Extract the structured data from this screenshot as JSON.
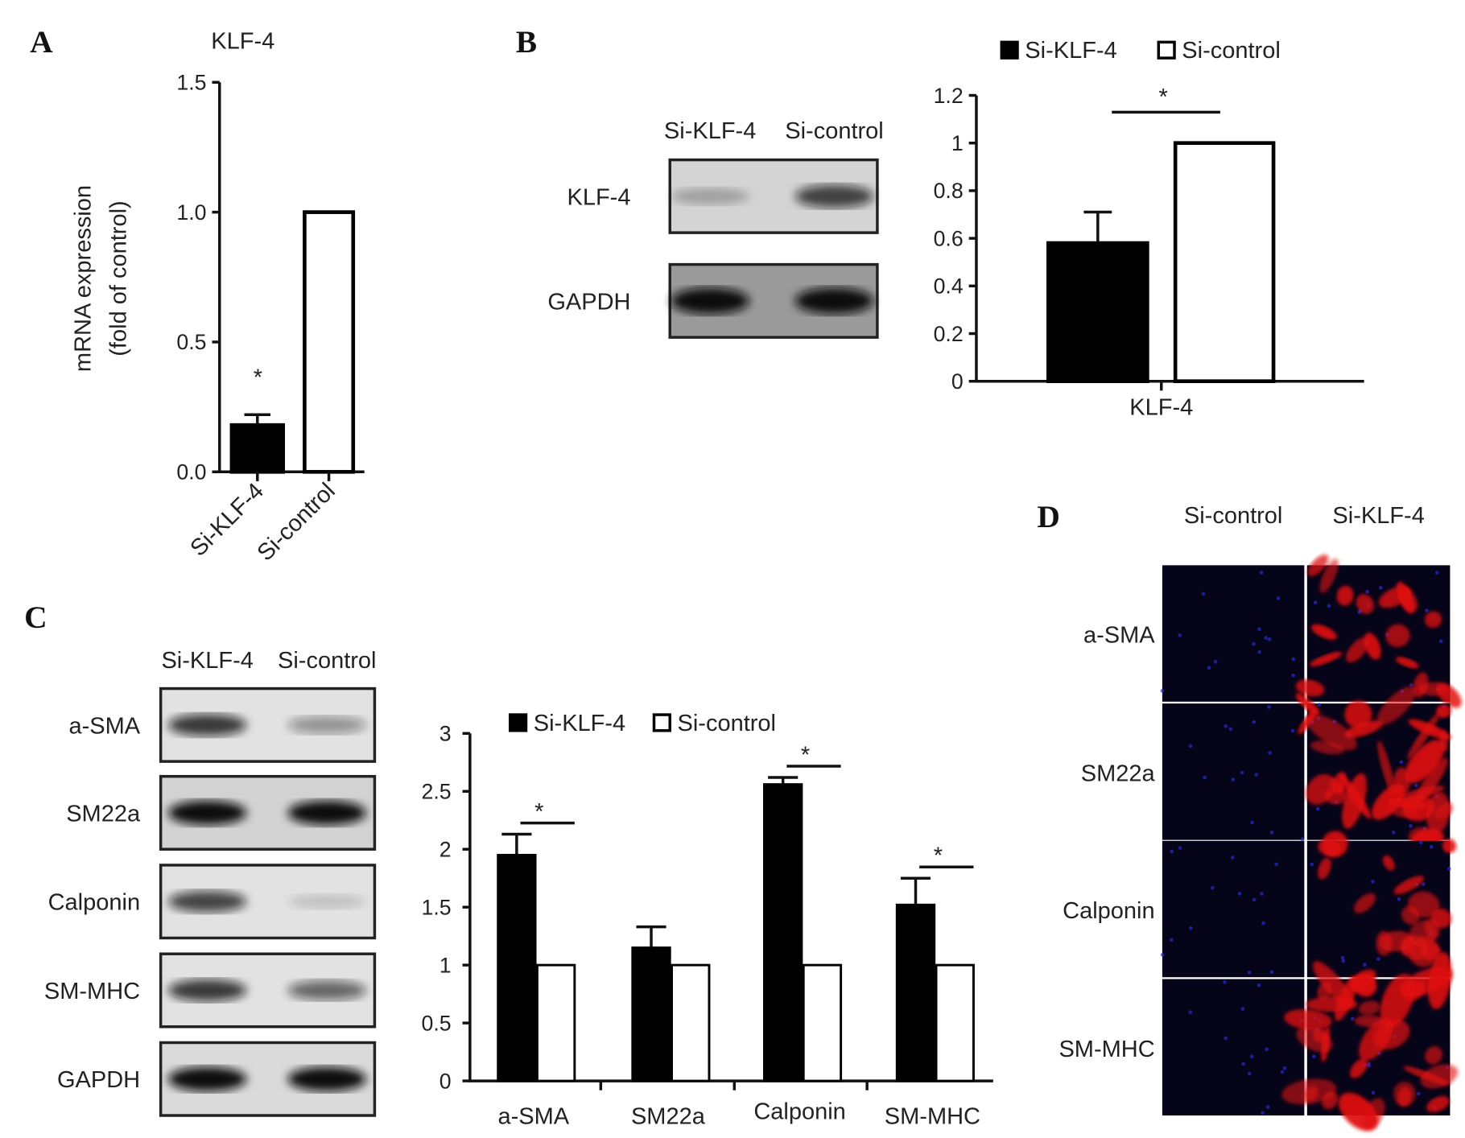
{
  "panels": {
    "a": "A",
    "b": "B",
    "c": "C",
    "d": "D"
  },
  "chart_data": [
    {
      "id": "A",
      "type": "bar",
      "title": "KLF-4",
      "ylabel_line1": "mRNA expression",
      "ylabel_line2": "(fold of control)",
      "categories": [
        "Si-KLF-4",
        "Si-control"
      ],
      "values": [
        0.18,
        1.0
      ],
      "errors": [
        0.04,
        0
      ],
      "fills": [
        "#000000",
        "#ffffff"
      ],
      "ylim": [
        0,
        1.5
      ],
      "yticks": [
        "0.0",
        "0.5",
        "1.0",
        "1.5"
      ],
      "annotations": [
        {
          "category": "Si-KLF-4",
          "text": "*"
        }
      ]
    },
    {
      "id": "B",
      "type": "bar",
      "legend": [
        {
          "name": "Si-KLF-4",
          "color": "#000000"
        },
        {
          "name": "Si-control",
          "color": "#ffffff"
        }
      ],
      "legend_placement": "top",
      "categories": [
        "KLF-4"
      ],
      "series": [
        {
          "name": "Si-KLF-4",
          "values": [
            0.58
          ],
          "errors": [
            0.13
          ]
        },
        {
          "name": "Si-control",
          "values": [
            1.0
          ],
          "errors": [
            0
          ]
        }
      ],
      "ylim": [
        0,
        1.2
      ],
      "yticks": [
        "0",
        "0.2",
        "0.4",
        "0.6",
        "0.8",
        "1",
        "1.2"
      ],
      "significance": "*"
    },
    {
      "id": "C",
      "type": "bar",
      "legend": [
        {
          "name": "Si-KLF-4",
          "color": "#000000"
        },
        {
          "name": "Si-control",
          "color": "#ffffff"
        }
      ],
      "legend_placement": "top",
      "categories": [
        "a-SMA",
        "SM22a",
        "Calponin",
        "SM-MHC"
      ],
      "series": [
        {
          "name": "Si-KLF-4",
          "values": [
            1.95,
            1.15,
            2.56,
            1.52
          ],
          "errors": [
            0.18,
            0.18,
            0.06,
            0.23
          ]
        },
        {
          "name": "Si-control",
          "values": [
            1,
            1,
            1,
            1
          ],
          "errors": [
            0,
            0,
            0,
            0
          ]
        }
      ],
      "ylim": [
        0,
        3
      ],
      "yticks": [
        "0",
        "0.5",
        "1",
        "1.5",
        "2",
        "2.5",
        "3"
      ],
      "significance": [
        "*",
        "",
        "*",
        "*"
      ]
    }
  ],
  "blot_b": {
    "columns": [
      "Si-KLF-4",
      "Si-control"
    ],
    "rows": [
      "KLF-4",
      "GAPDH"
    ]
  },
  "blot_c": {
    "columns": [
      "Si-KLF-4",
      "Si-control"
    ],
    "rows": [
      "a-SMA",
      "SM22a",
      "Calponin",
      "SM-MHC",
      "GAPDH"
    ]
  },
  "fluor_d": {
    "columns": [
      "Si-control",
      "Si-KLF-4"
    ],
    "rows": [
      "a-SMA",
      "SM22a",
      "Calponin",
      "SM-MHC"
    ],
    "colors": {
      "stain": "#e01010",
      "nuclei": "#2a2ad0",
      "background": "#050418"
    }
  }
}
